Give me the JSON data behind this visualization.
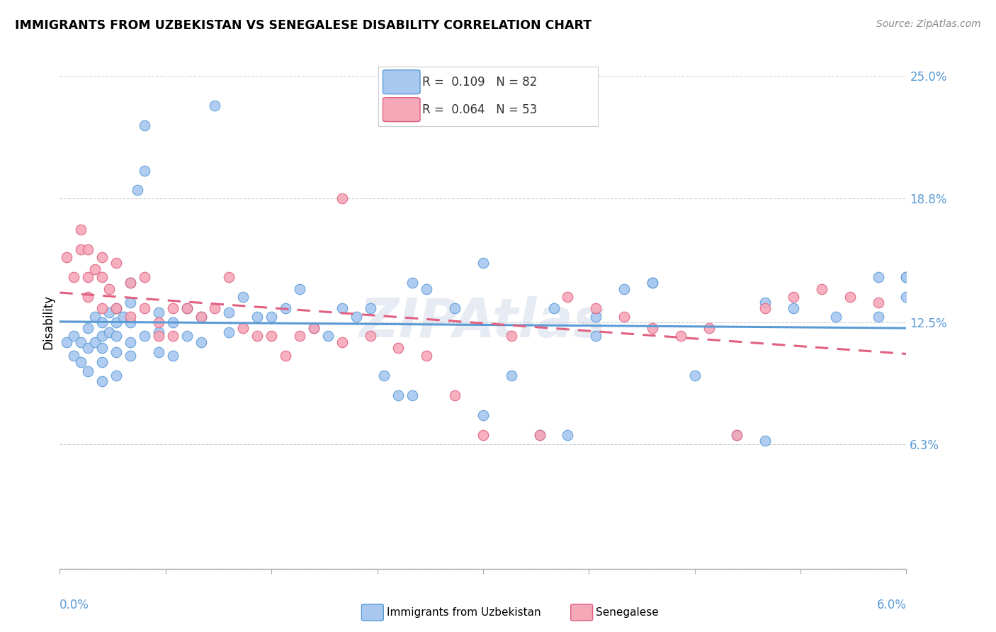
{
  "title": "IMMIGRANTS FROM UZBEKISTAN VS SENEGALESE DISABILITY CORRELATION CHART",
  "source": "Source: ZipAtlas.com",
  "ylabel": "Disability",
  "yticks": [
    0.0,
    0.063,
    0.125,
    0.188,
    0.25
  ],
  "ytick_labels": [
    "",
    "6.3%",
    "12.5%",
    "18.8%",
    "25.0%"
  ],
  "xlim": [
    0.0,
    0.06
  ],
  "ylim": [
    0.0,
    0.25
  ],
  "color_uzbek": "#a8c8f0",
  "color_senegal": "#f5a8b8",
  "line_color_uzbek": "#5b9bd5",
  "line_color_senegal": "#e06080",
  "uzbek_x": [
    0.0005,
    0.001,
    0.001,
    0.0015,
    0.0015,
    0.002,
    0.002,
    0.002,
    0.0025,
    0.0025,
    0.003,
    0.003,
    0.003,
    0.003,
    0.003,
    0.0035,
    0.0035,
    0.004,
    0.004,
    0.004,
    0.004,
    0.004,
    0.0045,
    0.005,
    0.005,
    0.005,
    0.005,
    0.005,
    0.0055,
    0.006,
    0.006,
    0.006,
    0.007,
    0.007,
    0.007,
    0.008,
    0.008,
    0.009,
    0.009,
    0.01,
    0.01,
    0.011,
    0.012,
    0.012,
    0.013,
    0.014,
    0.015,
    0.016,
    0.017,
    0.018,
    0.019,
    0.02,
    0.021,
    0.022,
    0.023,
    0.024,
    0.025,
    0.026,
    0.028,
    0.03,
    0.032,
    0.034,
    0.036,
    0.038,
    0.04,
    0.042,
    0.045,
    0.048,
    0.05,
    0.052,
    0.055,
    0.058,
    0.06,
    0.06,
    0.06,
    0.025,
    0.03,
    0.035,
    0.038,
    0.042,
    0.05,
    0.058
  ],
  "uzbek_y": [
    0.115,
    0.118,
    0.108,
    0.115,
    0.105,
    0.122,
    0.112,
    0.1,
    0.128,
    0.115,
    0.125,
    0.118,
    0.112,
    0.105,
    0.095,
    0.13,
    0.12,
    0.132,
    0.125,
    0.118,
    0.11,
    0.098,
    0.128,
    0.145,
    0.135,
    0.125,
    0.115,
    0.108,
    0.192,
    0.202,
    0.225,
    0.118,
    0.13,
    0.12,
    0.11,
    0.125,
    0.108,
    0.132,
    0.118,
    0.128,
    0.115,
    0.235,
    0.13,
    0.12,
    0.138,
    0.128,
    0.128,
    0.132,
    0.142,
    0.122,
    0.118,
    0.132,
    0.128,
    0.132,
    0.098,
    0.088,
    0.088,
    0.142,
    0.132,
    0.078,
    0.098,
    0.068,
    0.068,
    0.128,
    0.142,
    0.145,
    0.098,
    0.068,
    0.065,
    0.132,
    0.128,
    0.128,
    0.138,
    0.148,
    0.148,
    0.145,
    0.155,
    0.132,
    0.118,
    0.145,
    0.135,
    0.148
  ],
  "senegal_x": [
    0.0005,
    0.001,
    0.0015,
    0.0015,
    0.002,
    0.002,
    0.002,
    0.0025,
    0.003,
    0.003,
    0.003,
    0.0035,
    0.004,
    0.004,
    0.005,
    0.005,
    0.006,
    0.006,
    0.007,
    0.007,
    0.008,
    0.008,
    0.009,
    0.01,
    0.011,
    0.012,
    0.013,
    0.014,
    0.015,
    0.016,
    0.017,
    0.018,
    0.02,
    0.022,
    0.024,
    0.026,
    0.028,
    0.03,
    0.032,
    0.034,
    0.036,
    0.038,
    0.04,
    0.042,
    0.044,
    0.046,
    0.048,
    0.05,
    0.052,
    0.054,
    0.056,
    0.058,
    0.02
  ],
  "senegal_y": [
    0.158,
    0.148,
    0.172,
    0.162,
    0.148,
    0.138,
    0.162,
    0.152,
    0.158,
    0.148,
    0.132,
    0.142,
    0.155,
    0.132,
    0.145,
    0.128,
    0.132,
    0.148,
    0.125,
    0.118,
    0.132,
    0.118,
    0.132,
    0.128,
    0.132,
    0.148,
    0.122,
    0.118,
    0.118,
    0.108,
    0.118,
    0.122,
    0.115,
    0.118,
    0.112,
    0.108,
    0.088,
    0.068,
    0.118,
    0.068,
    0.138,
    0.132,
    0.128,
    0.122,
    0.118,
    0.122,
    0.068,
    0.132,
    0.138,
    0.142,
    0.138,
    0.135,
    0.188
  ]
}
